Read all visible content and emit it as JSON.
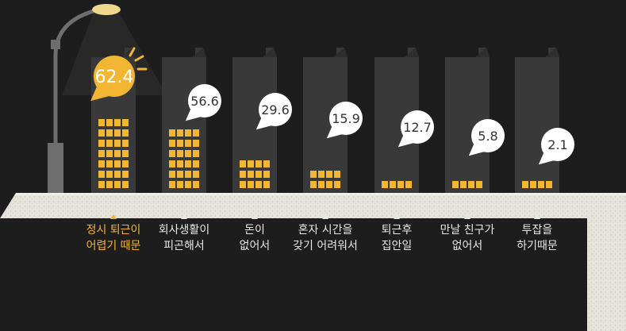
{
  "chart_data": {
    "type": "bar",
    "categories": [
      [
        "정시 퇴근이",
        "어렵기 때문"
      ],
      [
        "회사생활이",
        "피곤해서"
      ],
      [
        "돈이",
        "없어서"
      ],
      [
        "혼자 시간을",
        "갖기 어려워서"
      ],
      [
        "퇴근후",
        "집안일"
      ],
      [
        "만날 친구가",
        "없어서"
      ],
      [
        "투잡을",
        "하기때문"
      ]
    ],
    "values": [
      62.4,
      56.6,
      29.6,
      15.9,
      12.7,
      5.8,
      2.1
    ],
    "highlight_index": 0,
    "ylim": [
      0,
      100
    ],
    "grid": false,
    "colors": {
      "background": "#1e1d1d",
      "building": "#3a3939",
      "window_lit": "#f2b632",
      "bubble": "#ffffff",
      "highlight_bubble": "#f2b632",
      "ledge": "#e6e3dc",
      "highlight_text": "#f2b632",
      "text": "#e7e7e7"
    }
  }
}
